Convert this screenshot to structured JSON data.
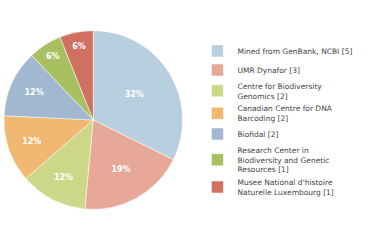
{
  "chart_data": {
    "type": "pie",
    "categories": [
      "Mined from GenBank, NCBI [5]",
      "UMR Dynafor [3]",
      "Centre for Biodiversity\nGenomics [2]",
      "Canadian Centre for DNA\nBarcoding [2]",
      "Biofidal [2]",
      "Research Center in\nBiodiversity and Genetic\nResources [1]",
      "Musee National d'histoire\nNaturelle Luxembourg [1]"
    ],
    "values": [
      32,
      19,
      12,
      12,
      12,
      6,
      6
    ],
    "value_labels": [
      "32%",
      "19%",
      "12%",
      "12%",
      "12%",
      "6%",
      "6%"
    ],
    "colors": [
      "#b8cfe0",
      "#e8a898",
      "#ccd888",
      "#f0b870",
      "#a0b8d0",
      "#a8c060",
      "#d07060"
    ],
    "data_labels": true,
    "legend": "right"
  }
}
